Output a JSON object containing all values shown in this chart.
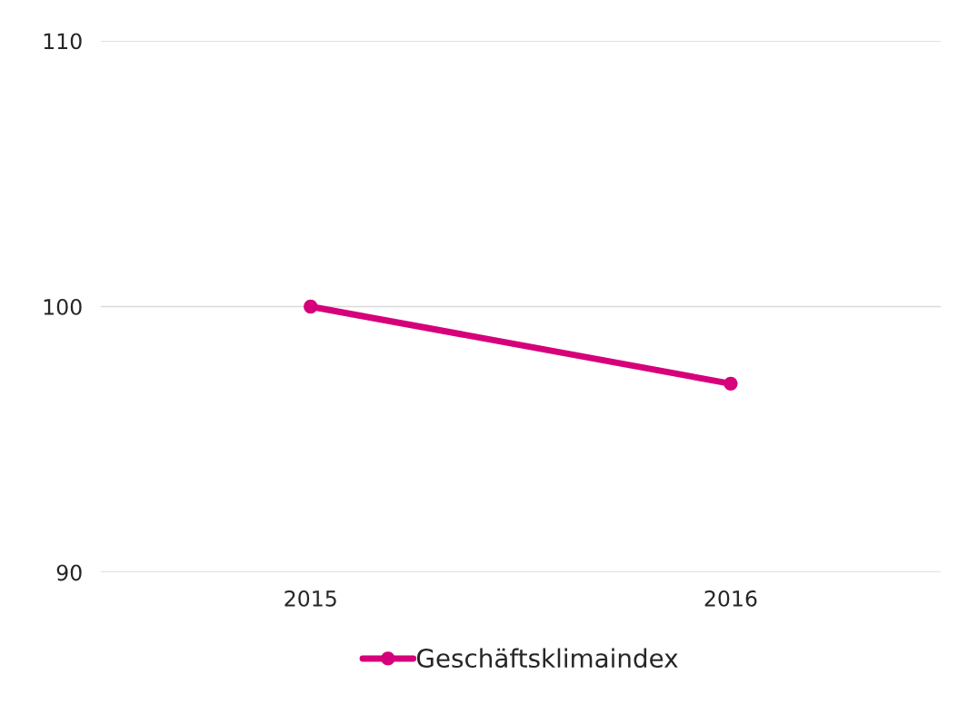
{
  "chart_data": {
    "type": "line",
    "categories": [
      "2015",
      "2016"
    ],
    "series": [
      {
        "name": "Geschäftsklimaindex",
        "color": "#d6007b",
        "values": [
          100,
          97.1
        ]
      }
    ],
    "ylim": [
      90,
      110
    ],
    "yticks": [
      90,
      100,
      110
    ],
    "grid": "y",
    "legend": "bottom",
    "marker": "circle",
    "line_style": "solid"
  }
}
